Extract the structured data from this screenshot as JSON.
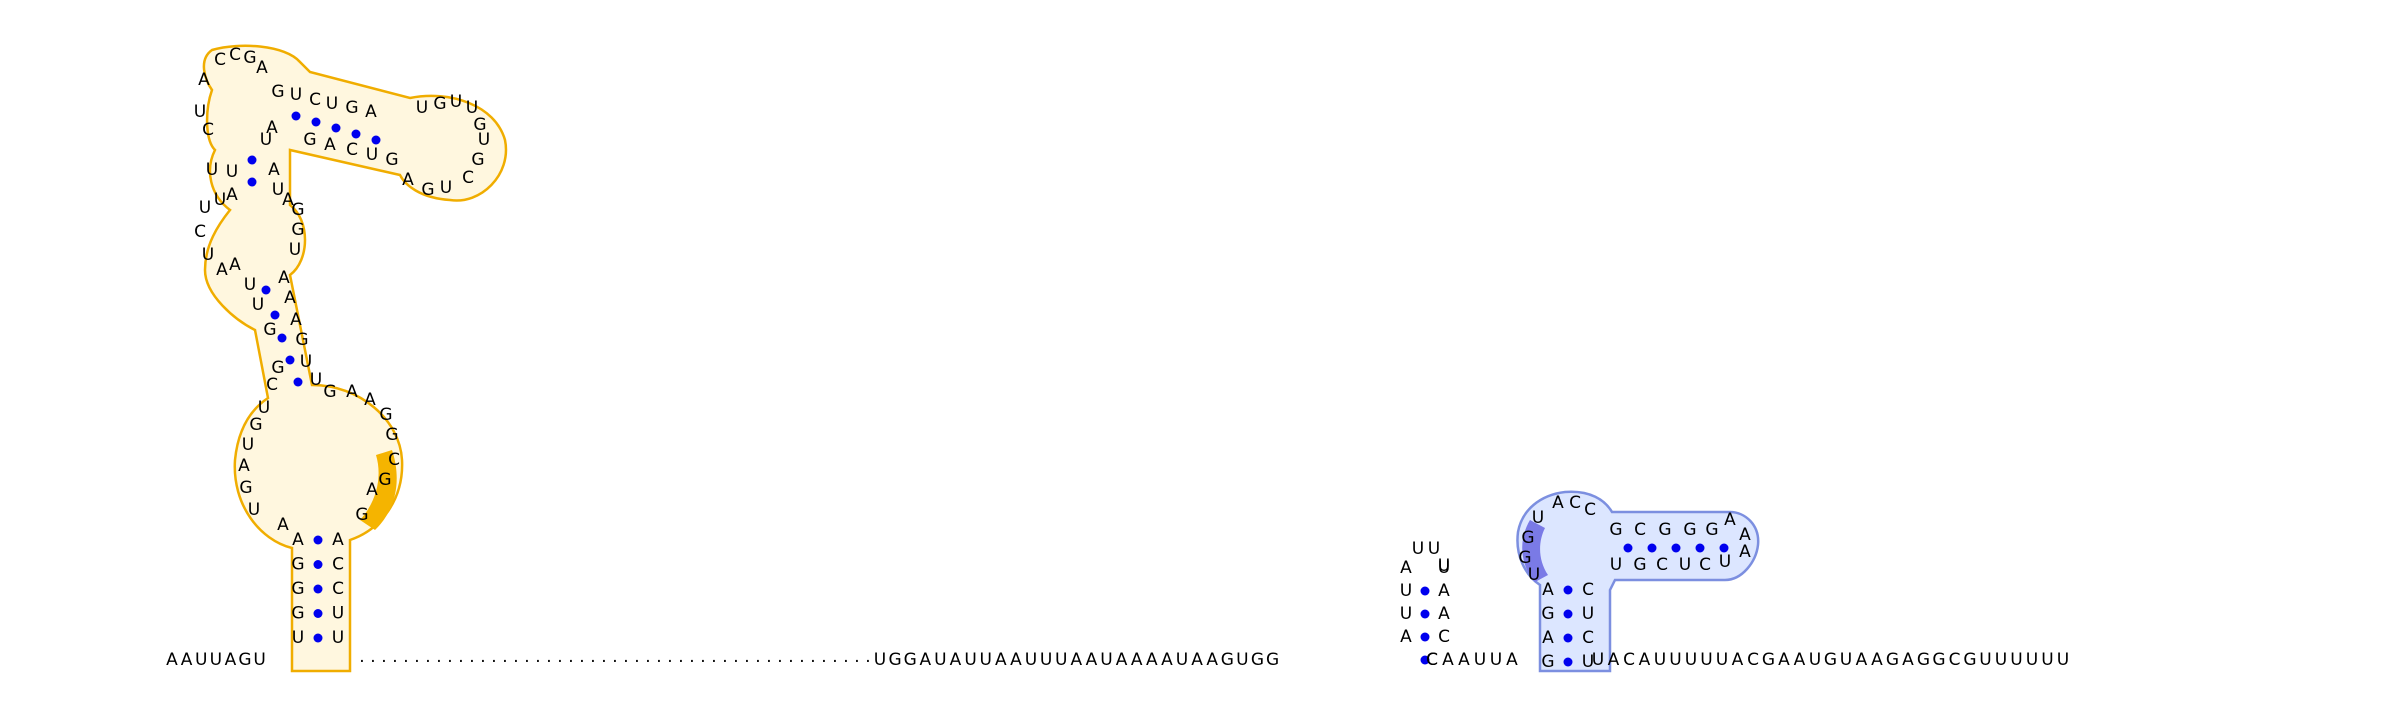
{
  "diagram": {
    "backbone_5prime": "AAUUAGU",
    "gap_glyph": "·",
    "backbone_mid": "UGGAUAUUAAUUUAAUAAAAUAAGUGG",
    "backbone_bridge": "CAAUUA",
    "backbone_3prime": "UACAUUUUUACGAAUGUAAGAGGCGUUUUUU",
    "hairpin_small_left": "AUUA",
    "hairpin_small_loop": "UUU",
    "hairpin_small_right": "UAAC",
    "domain_left_5prime_side": "UGGGA",
    "domain_left_3prime_side": "ACCUU",
    "domain_right_stem_left": "AGAG",
    "domain_right_stem_right": "CUCU",
    "colors": {
      "left_domain_fill": "#fff7df",
      "left_domain_stroke": "#f0ad00",
      "left_highlight": "#f5b400",
      "right_domain_fill": "#dce6ff",
      "right_domain_stroke": "#7c8fe0",
      "right_highlight": "#7a7ae6",
      "pair_dot": "#0000ee",
      "text": "#000000"
    }
  }
}
